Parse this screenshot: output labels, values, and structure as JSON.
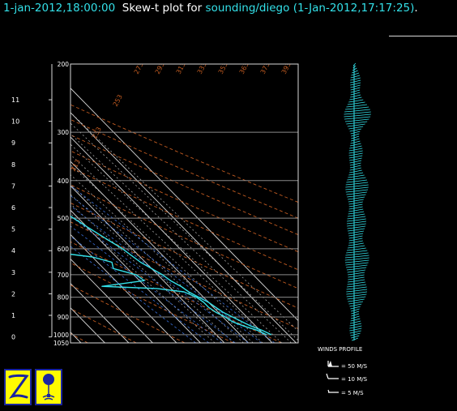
{
  "header": {
    "time_prefix": "1-jan-2012,18:00:00",
    "plot_label": "Skew-t plot for",
    "source": "sounding/diego",
    "source_time": "(1-Jan-2012,17:17:25)",
    "period": "."
  },
  "legend": {
    "title": "WINDS PROFILE",
    "items": [
      "= 50 M/S",
      "= 10 M/S",
      "= 5 M/S"
    ]
  },
  "colors": {
    "background": "#000000",
    "text": "#ffffff",
    "accent": "#33e0e8",
    "isobar": "#8a8a8a",
    "dry_adiabat": "#c05a20",
    "mixing_ratio": "#3a6fd8",
    "moist_adiabat": "#b8b8b8",
    "logo_bg": "#fffb00",
    "logo_border": "#1a26a0"
  },
  "icons": [
    "z-logo-icon",
    "balloon-icon"
  ],
  "chart_data": {
    "type": "line",
    "pressure_ticks": [
      200,
      300,
      400,
      500,
      600,
      700,
      800,
      900,
      1000,
      1050
    ],
    "height_km_ticks": [
      0,
      1,
      2,
      3,
      4,
      5,
      6,
      7,
      8,
      9,
      10,
      11
    ],
    "temp_ticks_top": [
      -70,
      -60,
      -50,
      -40,
      -30,
      -20
    ],
    "temp_ticks_right": [
      -10,
      0,
      10,
      20,
      30
    ],
    "dry_adiabat_labels": [
      213,
      233,
      253,
      273,
      293,
      313,
      333,
      353,
      363,
      373,
      393
    ],
    "mixing_ratio_labels": [
      8,
      12,
      16,
      20,
      24,
      28,
      32
    ],
    "xlim": [
      -85,
      35
    ],
    "ylim": [
      1050,
      200
    ],
    "y_scale": "log",
    "series": [
      {
        "kind": "temperature",
        "points": [
          [
            1000,
            23
          ],
          [
            975,
            21
          ],
          [
            950,
            18
          ],
          [
            925,
            16
          ],
          [
            900,
            14
          ],
          [
            875,
            12
          ],
          [
            850,
            11
          ],
          [
            825,
            10
          ],
          [
            800,
            8
          ],
          [
            775,
            6
          ],
          [
            750,
            5
          ],
          [
            725,
            3
          ],
          [
            700,
            2
          ],
          [
            675,
            0
          ],
          [
            650,
            -2
          ],
          [
            625,
            -3
          ],
          [
            600,
            -4
          ],
          [
            575,
            -6
          ],
          [
            550,
            -8
          ],
          [
            525,
            -10
          ],
          [
            500,
            -12
          ],
          [
            475,
            -14
          ],
          [
            450,
            -17
          ],
          [
            425,
            -19
          ],
          [
            400,
            -21
          ],
          [
            375,
            -24
          ],
          [
            350,
            -27
          ],
          [
            325,
            -30
          ],
          [
            300,
            -34
          ],
          [
            280,
            -37
          ],
          [
            260,
            -40
          ],
          [
            240,
            -44
          ],
          [
            220,
            -48
          ],
          [
            200,
            -52
          ]
        ]
      },
      {
        "kind": "dewpoint",
        "points": [
          [
            1000,
            21
          ],
          [
            975,
            19
          ],
          [
            950,
            15
          ],
          [
            925,
            12
          ],
          [
            900,
            11
          ],
          [
            875,
            9
          ],
          [
            850,
            8
          ],
          [
            825,
            8
          ],
          [
            800,
            7
          ],
          [
            775,
            4
          ],
          [
            760,
            -6
          ],
          [
            750,
            -28
          ],
          [
            740,
            -20
          ],
          [
            725,
            -8
          ],
          [
            700,
            -9
          ],
          [
            675,
            -16
          ],
          [
            650,
            -14
          ],
          [
            630,
            -20
          ],
          [
            610,
            -36
          ],
          [
            600,
            -55
          ],
          [
            595,
            -40
          ],
          [
            590,
            -30
          ],
          [
            580,
            -45
          ],
          [
            560,
            -38
          ],
          [
            540,
            -46
          ],
          [
            525,
            -40
          ],
          [
            510,
            -64
          ],
          [
            500,
            -48
          ],
          [
            490,
            -55
          ],
          [
            475,
            -38
          ],
          [
            460,
            -42
          ],
          [
            450,
            -32
          ],
          [
            440,
            -46
          ],
          [
            425,
            -40
          ],
          [
            410,
            -44
          ],
          [
            400,
            -36
          ],
          [
            385,
            -42
          ],
          [
            370,
            -40
          ],
          [
            355,
            -48
          ],
          [
            340,
            -50
          ],
          [
            325,
            -52
          ],
          [
            310,
            -56
          ],
          [
            300,
            -57
          ],
          [
            290,
            -60
          ],
          [
            275,
            -58
          ],
          [
            255,
            -58
          ],
          [
            240,
            -57
          ],
          [
            225,
            -62
          ],
          [
            210,
            -66
          ],
          [
            200,
            -70
          ]
        ]
      }
    ]
  }
}
